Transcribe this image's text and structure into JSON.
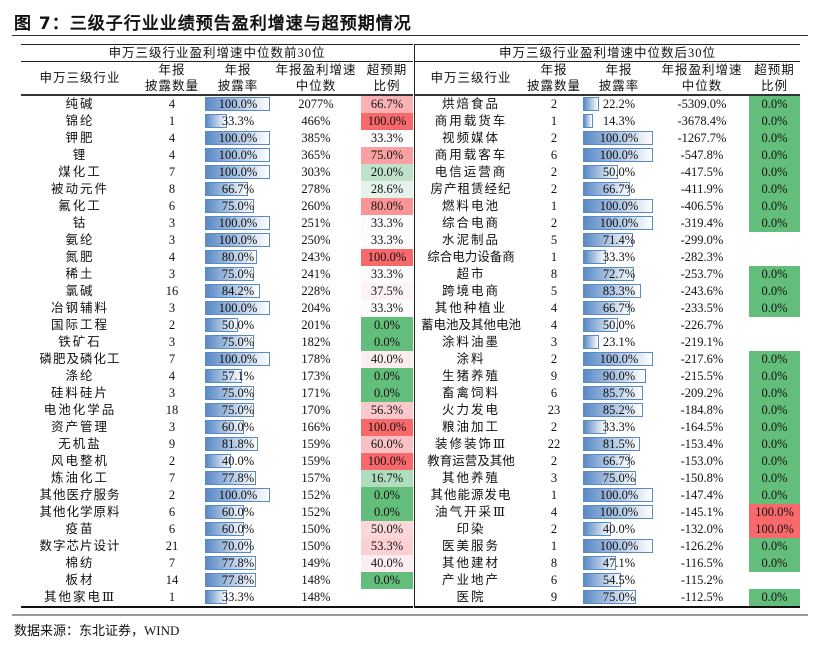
{
  "title": "图 7：三级子行业业绩预告盈利增速与超预期情况",
  "source": "数据来源：东北证券，WIND",
  "colors": {
    "bar": "#5a8ac6",
    "green": "#63be7b",
    "red": "#f8696b",
    "mid": "#fcfcff"
  },
  "headers": {
    "industry": "申万三级行业",
    "count_1": "年报",
    "count_2": "披露数量",
    "rate_1": "年报",
    "rate_2": "披露率",
    "median_1": "年报盈利增速",
    "median_2": "中位数",
    "surprise_1": "超预期",
    "surprise_2": "比例"
  },
  "left": {
    "title": "申万三级行业盈利增速中位数前30位",
    "rows": [
      {
        "name": "纯碱",
        "count": "4",
        "rate": "100.0%",
        "median": "2077%",
        "surprise": "66.7%"
      },
      {
        "name": "锦纶",
        "count": "1",
        "rate": "33.3%",
        "median": "466%",
        "surprise": "100.0%"
      },
      {
        "name": "钾肥",
        "count": "4",
        "rate": "100.0%",
        "median": "385%",
        "surprise": "33.3%"
      },
      {
        "name": "锂",
        "count": "4",
        "rate": "100.0%",
        "median": "365%",
        "surprise": "75.0%"
      },
      {
        "name": "煤化工",
        "count": "7",
        "rate": "100.0%",
        "median": "303%",
        "surprise": "20.0%"
      },
      {
        "name": "被动元件",
        "count": "8",
        "rate": "66.7%",
        "median": "278%",
        "surprise": "28.6%"
      },
      {
        "name": "氟化工",
        "count": "6",
        "rate": "75.0%",
        "median": "260%",
        "surprise": "80.0%"
      },
      {
        "name": "钴",
        "count": "3",
        "rate": "100.0%",
        "median": "251%",
        "surprise": "33.3%"
      },
      {
        "name": "氨纶",
        "count": "3",
        "rate": "100.0%",
        "median": "250%",
        "surprise": "33.3%"
      },
      {
        "name": "氮肥",
        "count": "4",
        "rate": "80.0%",
        "median": "243%",
        "surprise": "100.0%"
      },
      {
        "name": "稀土",
        "count": "3",
        "rate": "75.0%",
        "median": "241%",
        "surprise": "33.3%"
      },
      {
        "name": "氯碱",
        "count": "16",
        "rate": "84.2%",
        "median": "228%",
        "surprise": "37.5%"
      },
      {
        "name": "冶钢辅料",
        "count": "3",
        "rate": "100.0%",
        "median": "204%",
        "surprise": "33.3%"
      },
      {
        "name": "国际工程",
        "count": "2",
        "rate": "50.0%",
        "median": "201%",
        "surprise": "0.0%"
      },
      {
        "name": "铁矿石",
        "count": "3",
        "rate": "75.0%",
        "median": "182%",
        "surprise": "0.0%"
      },
      {
        "name": "磷肥及磷化工",
        "count": "7",
        "rate": "100.0%",
        "median": "178%",
        "surprise": "40.0%"
      },
      {
        "name": "涤纶",
        "count": "4",
        "rate": "57.1%",
        "median": "173%",
        "surprise": "0.0%"
      },
      {
        "name": "硅料硅片",
        "count": "3",
        "rate": "75.0%",
        "median": "171%",
        "surprise": "0.0%"
      },
      {
        "name": "电池化学品",
        "count": "18",
        "rate": "75.0%",
        "median": "170%",
        "surprise": "56.3%"
      },
      {
        "name": "资产管理",
        "count": "3",
        "rate": "60.0%",
        "median": "166%",
        "surprise": "100.0%"
      },
      {
        "name": "无机盐",
        "count": "9",
        "rate": "81.8%",
        "median": "159%",
        "surprise": "60.0%"
      },
      {
        "name": "风电整机",
        "count": "2",
        "rate": "40.0%",
        "median": "159%",
        "surprise": "100.0%"
      },
      {
        "name": "炼油化工",
        "count": "7",
        "rate": "77.8%",
        "median": "157%",
        "surprise": "16.7%"
      },
      {
        "name": "其他医疗服务",
        "count": "2",
        "rate": "100.0%",
        "median": "152%",
        "surprise": "0.0%"
      },
      {
        "name": "其他化学原料",
        "count": "6",
        "rate": "60.0%",
        "median": "152%",
        "surprise": "0.0%"
      },
      {
        "name": "疫苗",
        "count": "6",
        "rate": "60.0%",
        "median": "150%",
        "surprise": "50.0%"
      },
      {
        "name": "数字芯片设计",
        "count": "21",
        "rate": "70.0%",
        "median": "150%",
        "surprise": "53.3%"
      },
      {
        "name": "棉纺",
        "count": "7",
        "rate": "77.8%",
        "median": "149%",
        "surprise": "40.0%"
      },
      {
        "name": "板材",
        "count": "14",
        "rate": "77.8%",
        "median": "148%",
        "surprise": "0.0%"
      },
      {
        "name": "其他家电Ⅲ",
        "count": "1",
        "rate": "33.3%",
        "median": "148%",
        "surprise": ""
      }
    ]
  },
  "right": {
    "title": "申万三级行业盈利增速中位数后30位",
    "rows": [
      {
        "name": "烘焙食品",
        "count": "2",
        "rate": "22.2%",
        "median": "-5309.0%",
        "surprise": "0.0%"
      },
      {
        "name": "商用载货车",
        "count": "1",
        "rate": "14.3%",
        "median": "-3678.4%",
        "surprise": "0.0%"
      },
      {
        "name": "视频媒体",
        "count": "2",
        "rate": "100.0%",
        "median": "-1267.7%",
        "surprise": "0.0%"
      },
      {
        "name": "商用载客车",
        "count": "6",
        "rate": "100.0%",
        "median": "-547.8%",
        "surprise": "0.0%"
      },
      {
        "name": "电信运营商",
        "count": "2",
        "rate": "50.0%",
        "median": "-417.5%",
        "surprise": "0.0%"
      },
      {
        "name": "房产租赁经纪",
        "count": "2",
        "rate": "66.7%",
        "median": "-411.9%",
        "surprise": "0.0%"
      },
      {
        "name": "燃料电池",
        "count": "1",
        "rate": "100.0%",
        "median": "-406.5%",
        "surprise": "0.0%"
      },
      {
        "name": "综合电商",
        "count": "2",
        "rate": "100.0%",
        "median": "-319.4%",
        "surprise": "0.0%"
      },
      {
        "name": "水泥制品",
        "count": "5",
        "rate": "71.4%",
        "median": "-299.0%",
        "surprise": ""
      },
      {
        "name": "综合电力设备商",
        "count": "1",
        "rate": "33.3%",
        "median": "-282.3%",
        "surprise": ""
      },
      {
        "name": "超市",
        "count": "8",
        "rate": "72.7%",
        "median": "-253.7%",
        "surprise": "0.0%"
      },
      {
        "name": "跨境电商",
        "count": "5",
        "rate": "83.3%",
        "median": "-243.6%",
        "surprise": "0.0%"
      },
      {
        "name": "其他种植业",
        "count": "4",
        "rate": "66.7%",
        "median": "-233.5%",
        "surprise": "0.0%"
      },
      {
        "name": "蓄电池及其他电池",
        "count": "4",
        "rate": "50.0%",
        "median": "-226.7%",
        "surprise": ""
      },
      {
        "name": "涂料油墨",
        "count": "3",
        "rate": "23.1%",
        "median": "-219.1%",
        "surprise": ""
      },
      {
        "name": "涂料",
        "count": "2",
        "rate": "100.0%",
        "median": "-217.6%",
        "surprise": "0.0%"
      },
      {
        "name": "生猪养殖",
        "count": "9",
        "rate": "90.0%",
        "median": "-215.5%",
        "surprise": "0.0%"
      },
      {
        "name": "畜禽饲料",
        "count": "6",
        "rate": "85.7%",
        "median": "-209.2%",
        "surprise": "0.0%"
      },
      {
        "name": "火力发电",
        "count": "23",
        "rate": "85.2%",
        "median": "-184.8%",
        "surprise": "0.0%"
      },
      {
        "name": "粮油加工",
        "count": "2",
        "rate": "33.3%",
        "median": "-164.5%",
        "surprise": "0.0%"
      },
      {
        "name": "装修装饰Ⅲ",
        "count": "22",
        "rate": "81.5%",
        "median": "-153.4%",
        "surprise": "0.0%"
      },
      {
        "name": "教育运营及其他",
        "count": "2",
        "rate": "66.7%",
        "median": "-153.0%",
        "surprise": "0.0%"
      },
      {
        "name": "其他养殖",
        "count": "3",
        "rate": "75.0%",
        "median": "-150.8%",
        "surprise": "0.0%"
      },
      {
        "name": "其他能源发电",
        "count": "1",
        "rate": "100.0%",
        "median": "-147.4%",
        "surprise": "0.0%"
      },
      {
        "name": "油气开采Ⅲ",
        "count": "4",
        "rate": "100.0%",
        "median": "-145.1%",
        "surprise": "100.0%"
      },
      {
        "name": "印染",
        "count": "2",
        "rate": "40.0%",
        "median": "-132.0%",
        "surprise": "100.0%"
      },
      {
        "name": "医美服务",
        "count": "1",
        "rate": "100.0%",
        "median": "-126.2%",
        "surprise": "0.0%"
      },
      {
        "name": "其他建材",
        "count": "8",
        "rate": "47.1%",
        "median": "-116.5%",
        "surprise": "0.0%"
      },
      {
        "name": "产业地产",
        "count": "6",
        "rate": "54.5%",
        "median": "-115.2%",
        "surprise": ""
      },
      {
        "name": "医院",
        "count": "9",
        "rate": "75.0%",
        "median": "-112.5%",
        "surprise": "0.0%"
      }
    ]
  }
}
